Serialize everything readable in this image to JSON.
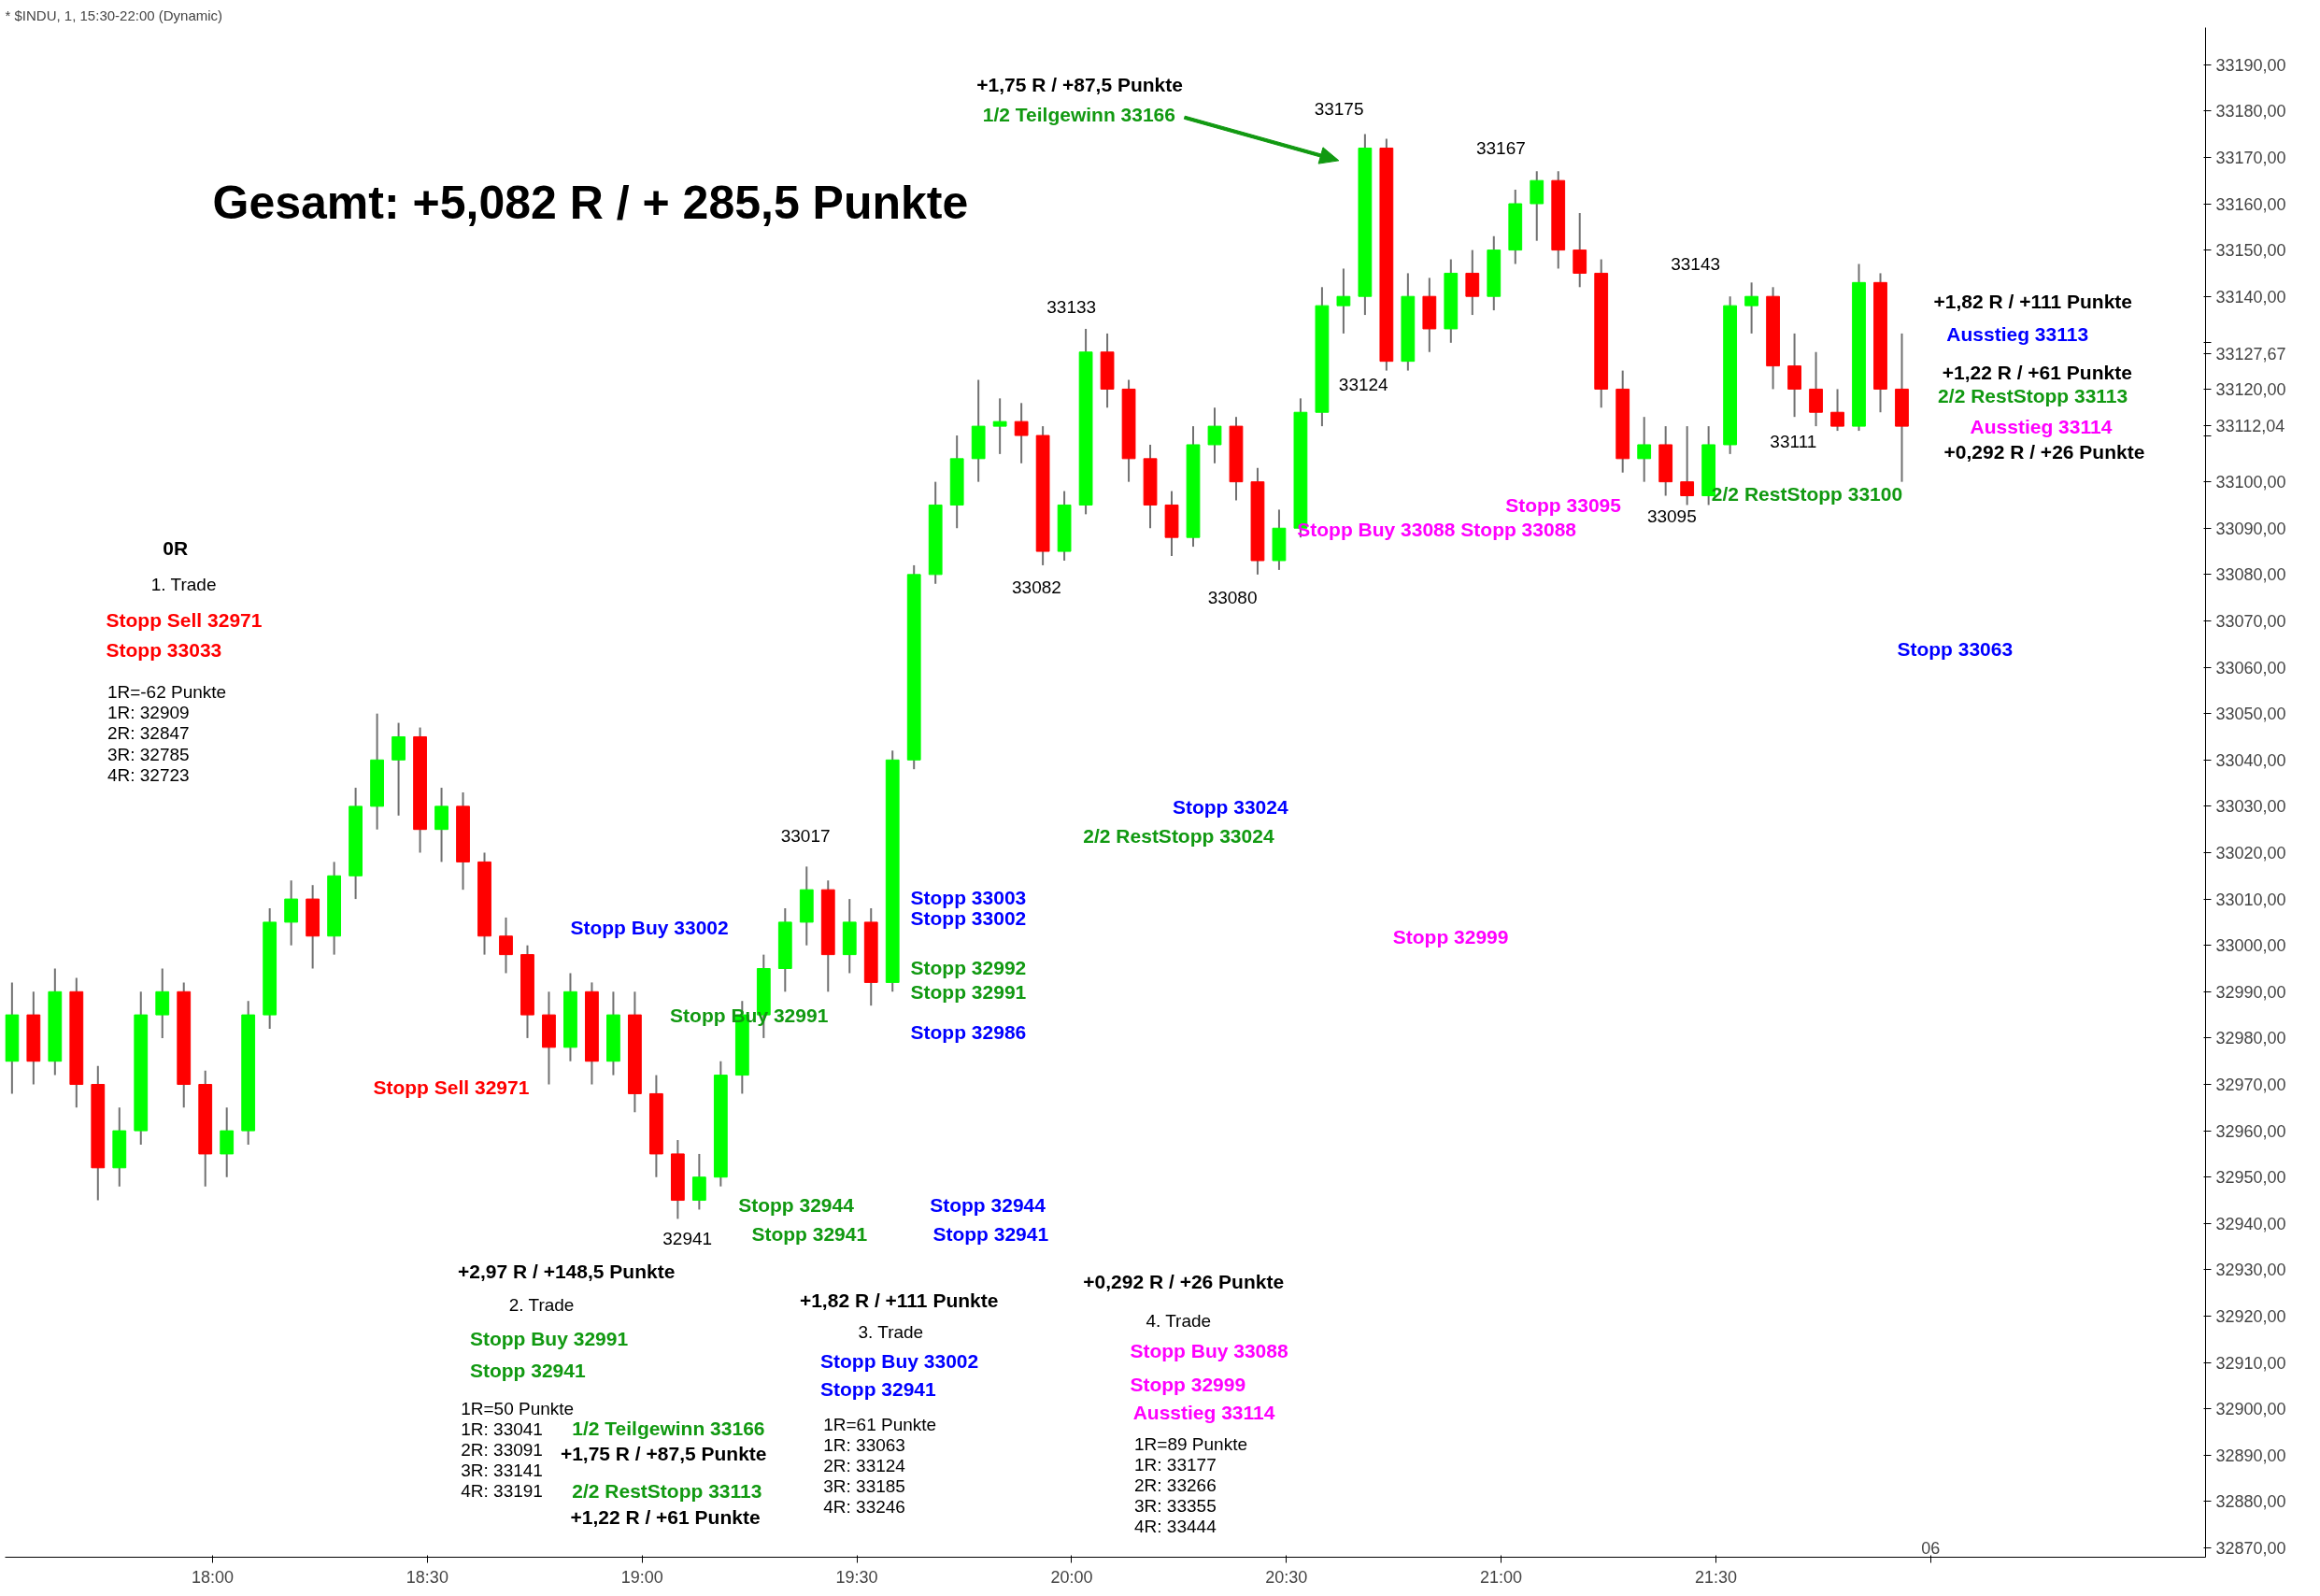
{
  "chart_data": {
    "type": "candlestick",
    "title": "* $INDU, 1, 15:30-22:00 (Dynamic)",
    "x": [
      17.533,
      17.583,
      17.633,
      17.683,
      17.733,
      17.783,
      17.833,
      17.883,
      17.933,
      17.983,
      18.033,
      18.083,
      18.133,
      18.183,
      18.233,
      18.283,
      18.333,
      18.383,
      18.433,
      18.483,
      18.533,
      18.583,
      18.633,
      18.683,
      18.733,
      18.783,
      18.833,
      18.883,
      18.933,
      18.983,
      19.033,
      19.083,
      19.133,
      19.183,
      19.233,
      19.283,
      19.333,
      19.383,
      19.433,
      19.483,
      19.533,
      19.583,
      19.633,
      19.683,
      19.733,
      19.783,
      19.833,
      19.883,
      19.933,
      19.983,
      20.033,
      20.083,
      20.133,
      20.183,
      20.233,
      20.283,
      20.333,
      20.383,
      20.433,
      20.483,
      20.533,
      20.583,
      20.633,
      20.683,
      20.733,
      20.783,
      20.833,
      20.883,
      20.933,
      20.983,
      21.033,
      21.083,
      21.133,
      21.183,
      21.233,
      21.283,
      21.333,
      21.383,
      21.433,
      21.483,
      21.533,
      21.583,
      21.633,
      21.683,
      21.733,
      21.783,
      21.833,
      21.883,
      21.933
    ],
    "ohlc": [
      [
        32975,
        32992,
        32968,
        32985
      ],
      [
        32985,
        32990,
        32970,
        32975
      ],
      [
        32975,
        32995,
        32972,
        32990
      ],
      [
        32990,
        32993,
        32965,
        32970
      ],
      [
        32970,
        32974,
        32945,
        32952
      ],
      [
        32952,
        32965,
        32948,
        32960
      ],
      [
        32960,
        32990,
        32957,
        32985
      ],
      [
        32985,
        32995,
        32980,
        32990
      ],
      [
        32990,
        32992,
        32965,
        32970
      ],
      [
        32970,
        32973,
        32948,
        32955
      ],
      [
        32955,
        32965,
        32950,
        32960
      ],
      [
        32960,
        32988,
        32957,
        32985
      ],
      [
        32985,
        33008,
        32982,
        33005
      ],
      [
        33005,
        33014,
        33000,
        33010
      ],
      [
        33010,
        33013,
        32995,
        33002
      ],
      [
        33002,
        33018,
        32998,
        33015
      ],
      [
        33015,
        33034,
        33010,
        33030
      ],
      [
        33030,
        33050,
        33025,
        33040
      ],
      [
        33040,
        33048,
        33028,
        33045
      ],
      [
        33045,
        33047,
        33020,
        33025
      ],
      [
        33025,
        33034,
        33018,
        33030
      ],
      [
        33030,
        33033,
        33012,
        33018
      ],
      [
        33018,
        33020,
        32998,
        33002
      ],
      [
        33002,
        33006,
        32994,
        32998
      ],
      [
        32998,
        33000,
        32980,
        32985
      ],
      [
        32985,
        32990,
        32970,
        32978
      ],
      [
        32978,
        32994,
        32975,
        32990
      ],
      [
        32990,
        32992,
        32970,
        32975
      ],
      [
        32975,
        32990,
        32972,
        32985
      ],
      [
        32985,
        32990,
        32964,
        32968
      ],
      [
        32968,
        32972,
        32950,
        32955
      ],
      [
        32955,
        32958,
        32941,
        32945
      ],
      [
        32945,
        32955,
        32943,
        32950
      ],
      [
        32950,
        32975,
        32948,
        32972
      ],
      [
        32972,
        32988,
        32968,
        32985
      ],
      [
        32985,
        32998,
        32980,
        32995
      ],
      [
        32995,
        33008,
        32990,
        33005
      ],
      [
        33005,
        33017,
        33000,
        33012
      ],
      [
        33012,
        33014,
        32990,
        32998
      ],
      [
        32998,
        33010,
        32994,
        33005
      ],
      [
        33005,
        33008,
        32987,
        32992
      ],
      [
        32992,
        33042,
        32990,
        33040
      ],
      [
        33040,
        33082,
        33038,
        33080
      ],
      [
        33080,
        33100,
        33078,
        33095
      ],
      [
        33095,
        33110,
        33090,
        33105
      ],
      [
        33105,
        33122,
        33100,
        33112
      ],
      [
        33112,
        33118,
        33106,
        33113
      ],
      [
        33113,
        33117,
        33104,
        33110
      ],
      [
        33110,
        33112,
        33082,
        33085
      ],
      [
        33085,
        33098,
        33083,
        33095
      ],
      [
        33095,
        33133,
        33093,
        33128
      ],
      [
        33128,
        33132,
        33116,
        33120
      ],
      [
        33120,
        33122,
        33100,
        33105
      ],
      [
        33105,
        33108,
        33090,
        33095
      ],
      [
        33095,
        33098,
        33084,
        33088
      ],
      [
        33088,
        33112,
        33086,
        33108
      ],
      [
        33108,
        33116,
        33104,
        33112
      ],
      [
        33112,
        33114,
        33096,
        33100
      ],
      [
        33100,
        33103,
        33080,
        33083
      ],
      [
        33083,
        33094,
        33081,
        33090
      ],
      [
        33090,
        33118,
        33088,
        33115
      ],
      [
        33115,
        33142,
        33112,
        33138
      ],
      [
        33138,
        33146,
        33132,
        33140
      ],
      [
        33140,
        33175,
        33136,
        33172
      ],
      [
        33172,
        33174,
        33124,
        33126
      ],
      [
        33126,
        33145,
        33124,
        33140
      ],
      [
        33140,
        33144,
        33128,
        33133
      ],
      [
        33133,
        33148,
        33130,
        33145
      ],
      [
        33145,
        33150,
        33136,
        33140
      ],
      [
        33140,
        33153,
        33137,
        33150
      ],
      [
        33150,
        33163,
        33147,
        33160
      ],
      [
        33160,
        33167,
        33152,
        33165
      ],
      [
        33165,
        33167,
        33146,
        33150
      ],
      [
        33150,
        33158,
        33142,
        33145
      ],
      [
        33145,
        33148,
        33116,
        33120
      ],
      [
        33120,
        33124,
        33102,
        33105
      ],
      [
        33105,
        33114,
        33100,
        33108
      ],
      [
        33108,
        33112,
        33097,
        33100
      ],
      [
        33100,
        33112,
        33095,
        33097
      ],
      [
        33097,
        33112,
        33095,
        33108
      ],
      [
        33108,
        33140,
        33106,
        33138
      ],
      [
        33138,
        33143,
        33132,
        33140
      ],
      [
        33140,
        33142,
        33120,
        33125
      ],
      [
        33125,
        33132,
        33114,
        33120
      ],
      [
        33120,
        33128,
        33112,
        33115
      ],
      [
        33115,
        33120,
        33111,
        33112
      ],
      [
        33112,
        33147,
        33111,
        33143
      ],
      [
        33143,
        33145,
        33115,
        33120
      ],
      [
        33120,
        33132,
        33100,
        33112
      ]
    ],
    "colors": [
      "#00ff00",
      "#ff0000",
      "#00ff00",
      "#ff0000",
      "#ff0000",
      "#00ff00",
      "#00ff00",
      "#00ff00",
      "#ff0000",
      "#ff0000",
      "#00ff00",
      "#00ff00",
      "#00ff00",
      "#00ff00",
      "#ff0000",
      "#00ff00",
      "#00ff00",
      "#00ff00",
      "#00ff00",
      "#ff0000",
      "#00ff00",
      "#ff0000",
      "#ff0000",
      "#ff0000",
      "#ff0000",
      "#ff0000",
      "#00ff00",
      "#ff0000",
      "#00ff00",
      "#ff0000",
      "#ff0000",
      "#ff0000",
      "#00ff00",
      "#00ff00",
      "#00ff00",
      "#00ff00",
      "#00ff00",
      "#00ff00",
      "#ff0000",
      "#00ff00",
      "#ff0000",
      "#00ff00",
      "#00ff00",
      "#00ff00",
      "#00ff00",
      "#00ff00",
      "#00ff00",
      "#ff0000",
      "#ff0000",
      "#00ff00",
      "#00ff00",
      "#ff0000",
      "#ff0000",
      "#ff0000",
      "#ff0000",
      "#00ff00",
      "#00ff00",
      "#ff0000",
      "#ff0000",
      "#00ff00",
      "#00ff00",
      "#00ff00",
      "#00ff00",
      "#00ff00",
      "#ff0000",
      "#00ff00",
      "#ff0000",
      "#00ff00",
      "#ff0000",
      "#00ff00",
      "#00ff00",
      "#00ff00",
      "#ff0000",
      "#ff0000",
      "#ff0000",
      "#ff0000",
      "#00ff00",
      "#ff0000",
      "#ff0000",
      "#00ff00",
      "#00ff00",
      "#00ff00",
      "#ff0000",
      "#ff0000",
      "#ff0000",
      "#ff0000",
      "#00ff00",
      "#ff0000",
      "#ff0000"
    ],
    "xlim": [
      17.517,
      22.64
    ],
    "ylim": [
      32868,
      33198
    ],
    "xticks": [
      {
        "value": 18,
        "label": "18:00"
      },
      {
        "value": 18.5,
        "label": "18:30"
      },
      {
        "value": 19,
        "label": "19:00"
      },
      {
        "value": 19.5,
        "label": "19:30"
      },
      {
        "value": 20,
        "label": "20:00"
      },
      {
        "value": 20.5,
        "label": "20:30"
      },
      {
        "value": 21,
        "label": "21:00"
      },
      {
        "value": 21.5,
        "label": "21:30"
      },
      {
        "value": 22,
        "label": null
      }
    ],
    "yticks": [
      {
        "value": 32870,
        "label": "32870,00"
      },
      {
        "value": 32880,
        "label": "32880,00"
      },
      {
        "value": 32890,
        "label": "32890,00"
      },
      {
        "value": 32900,
        "label": "32900,00"
      },
      {
        "value": 32910,
        "label": "32910,00"
      },
      {
        "value": 32920,
        "label": "32920,00"
      },
      {
        "value": 32930,
        "label": "32930,00"
      },
      {
        "value": 32940,
        "label": "32940,00"
      },
      {
        "value": 32950,
        "label": "32950,00"
      },
      {
        "value": 32960,
        "label": "32960,00"
      },
      {
        "value": 32970,
        "label": "32970,00"
      },
      {
        "value": 32980,
        "label": "32980,00"
      },
      {
        "value": 32990,
        "label": "32990,00"
      },
      {
        "value": 33000,
        "label": "33000,00"
      },
      {
        "value": 33010,
        "label": "33010,00"
      },
      {
        "value": 33020,
        "label": "33020,00"
      },
      {
        "value": 33030,
        "label": "33030,00"
      },
      {
        "value": 33040,
        "label": "33040,00"
      },
      {
        "value": 33050,
        "label": "33050,00"
      },
      {
        "value": 33060,
        "label": "33060,00"
      },
      {
        "value": 33070,
        "label": "33070,00"
      },
      {
        "value": 33080,
        "label": "33080,00"
      },
      {
        "value": 33090,
        "label": "33090,00"
      },
      {
        "value": 33100,
        "label": "33100,00"
      },
      {
        "value": 33110,
        "label": null
      },
      {
        "value": 33112.04,
        "label": "33112,04"
      },
      {
        "value": 33120,
        "label": "33120,00"
      },
      {
        "value": 33127.67,
        "label": "33127,67"
      },
      {
        "value": 33130,
        "label": null
      },
      {
        "value": 33140,
        "label": "33140,00"
      },
      {
        "value": 33150,
        "label": "33150,00"
      },
      {
        "value": 33160,
        "label": "33160,00"
      },
      {
        "value": 33170,
        "label": "33170,00"
      },
      {
        "value": 33180,
        "label": "33180,00"
      },
      {
        "value": 33190,
        "label": "33190,00"
      }
    ],
    "annotations": [
      "Gesamt: +5,082 R / + 285,5 Punkte",
      "+1,75 R / +87,5 Punkte",
      "1/2 Teilgewinn 33166",
      "33175",
      "33167",
      "33133",
      "33124",
      "33143",
      "33082",
      "33080",
      "33095",
      "33111",
      "33017",
      "32941",
      "+1,82 R / +111 Punkte",
      "Ausstieg 33113",
      "+1,22 R / +61 Punkte",
      "2/2 RestStopp 33113",
      "Ausstieg 33114",
      "+0,292 R / +26 Punkte",
      "Stopp 33095",
      "Stopp Buy 33088 Stopp 33088",
      "2/2 RestStopp 33100",
      "Stopp 33063",
      "0R",
      "1. Trade",
      "Stopp Sell 32971",
      "Stopp 33033",
      "1R=-62 Punkte\n1R: 32909\n2R: 32847\n3R: 32785\n4R: 32723",
      "Stopp Sell 32971",
      "Stopp Buy 33002",
      "Stopp Buy 32991",
      "Stopp 33003",
      "Stopp 33002",
      "Stopp 32992",
      "Stopp 32991",
      "Stopp 32986",
      "Stopp 33024",
      "2/2 RestStopp 33024",
      "Stopp 32999",
      "Stopp 32944",
      "Stopp 32941",
      "Stopp 32944",
      "Stopp 32941",
      "+2,97 R / +148,5 Punkte",
      "2. Trade",
      "Stopp Buy 32991",
      "Stopp 32941",
      "1R=50 Punkte\n1R: 33041\n2R: 33091\n3R: 33141\n4R: 33191",
      "1/2 Teilgewinn 33166",
      "+1,75 R / +87,5 Punkte",
      "2/2 RestStopp 33113",
      "+1,22 R / +61 Punkte",
      "+1,82 R / +111 Punkte",
      "3. Trade",
      "Stopp Buy 33002",
      "Stopp 32941",
      "1R=61 Punkte\n1R: 33063\n2R: 33124\n3R: 33185\n4R: 33246",
      "+0,292 R / +26 Punkte",
      "4. Trade",
      "Stopp Buy 33088",
      "Stopp 32999",
      "Ausstieg 33114",
      "1R=89 Punkte\n1R: 33177\n2R: 33266\n3R: 33355\n4R: 33444",
      "06"
    ]
  }
}
